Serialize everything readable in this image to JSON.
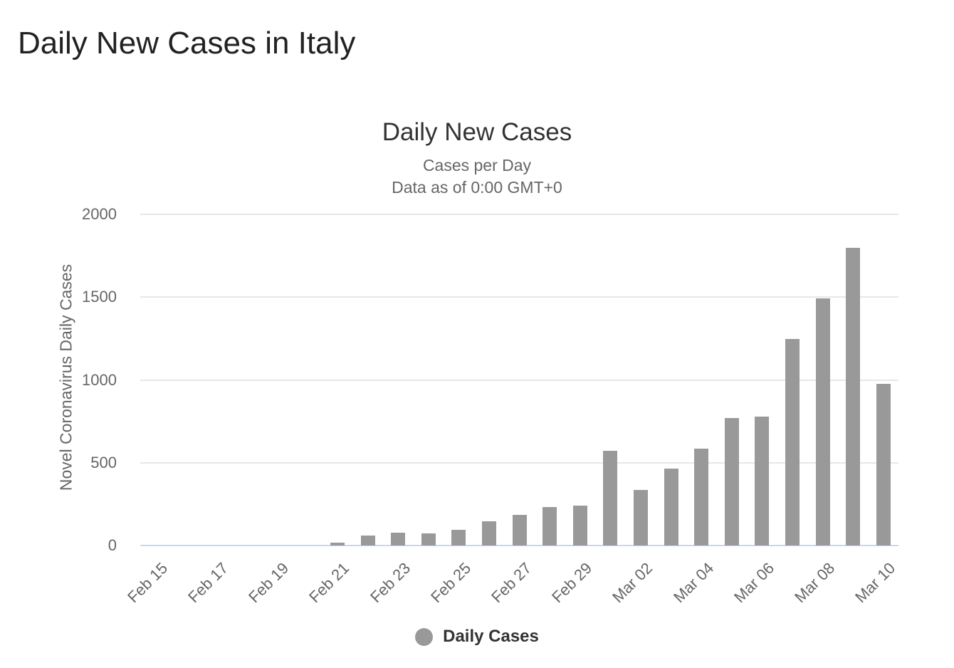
{
  "page_title": "Daily New Cases in Italy",
  "chart": {
    "title": "Daily New Cases",
    "subtitle_line1": "Cases per Day",
    "subtitle_line2": "Data as of 0:00 GMT+0",
    "y_axis_title": "Novel Coronavirus Daily Cases",
    "legend_label": "Daily Cases"
  },
  "colors": {
    "bar": "#999999",
    "gridline": "#e7e7e7",
    "axis_line": "#ccd6eb",
    "tick_label": "#666666",
    "title": "#333333",
    "subtitle": "#666666",
    "page_title": "#222222",
    "legend_text": "#333333"
  },
  "chart_data": {
    "type": "bar",
    "title": "Daily New Cases",
    "subtitle": [
      "Cases per Day",
      "Data as of 0:00 GMT+0"
    ],
    "xlabel": "",
    "ylabel": "Novel Coronavirus Daily Cases",
    "ylim": [
      0,
      2000
    ],
    "y_ticks": [
      0,
      500,
      1000,
      1500,
      2000
    ],
    "grid": true,
    "legend_position": "bottom",
    "series_name": "Daily Cases",
    "categories": [
      "Feb 15",
      "Feb 16",
      "Feb 17",
      "Feb 18",
      "Feb 19",
      "Feb 20",
      "Feb 21",
      "Feb 22",
      "Feb 23",
      "Feb 24",
      "Feb 25",
      "Feb 26",
      "Feb 27",
      "Feb 28",
      "Feb 29",
      "Mar 01",
      "Mar 02",
      "Mar 03",
      "Mar 04",
      "Mar 05",
      "Mar 06",
      "Mar 07",
      "Mar 08",
      "Mar 09",
      "Mar 10"
    ],
    "values": [
      0,
      0,
      0,
      0,
      0,
      0,
      17,
      59,
      78,
      72,
      94,
      147,
      185,
      234,
      239,
      573,
      335,
      466,
      587,
      769,
      778,
      1247,
      1492,
      1797,
      977
    ],
    "x_tick_every": 2,
    "x_tick_labels": [
      "Feb 15",
      "Feb 17",
      "Feb 19",
      "Feb 21",
      "Feb 23",
      "Feb 25",
      "Feb 27",
      "Feb 29",
      "Mar 02",
      "Mar 04",
      "Mar 06",
      "Mar 08",
      "Mar 10"
    ]
  }
}
